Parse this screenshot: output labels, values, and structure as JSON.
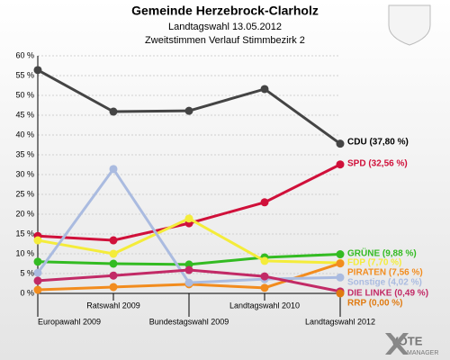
{
  "chart_data": {
    "type": "line",
    "title": "Gemeinde Herzebrock-Clarholz",
    "subtitle": "Landtagswahl 13.05.2012",
    "subtitle2": "Zweitstimmen Verlauf Stimmbezirk 2",
    "categories": [
      "Europawahl 2009",
      "Ratswahl 2009",
      "Bundestagswahl 2009",
      "Landtagswahl 2010",
      "Landtagswahl 2012"
    ],
    "series": [
      {
        "name": "CDU (37,80 %)",
        "color": "#444444",
        "values": [
          56.4,
          45.9,
          46.1,
          51.6,
          37.8
        ]
      },
      {
        "name": "SPD (32,56 %)",
        "color": "#d0103a",
        "values": [
          14.5,
          13.4,
          17.7,
          23.0,
          32.56
        ]
      },
      {
        "name": "GRÜNE (9,88 %)",
        "color": "#33bb22",
        "values": [
          8.0,
          7.5,
          7.3,
          9.1,
          9.88
        ]
      },
      {
        "name": "FDP (7,70 %)",
        "color": "#f4ec3a",
        "values": [
          13.4,
          10.0,
          18.9,
          8.2,
          7.7
        ]
      },
      {
        "name": "PIRATEN (7,56 %)",
        "color": "#f28c1e",
        "values": [
          0.9,
          1.6,
          2.3,
          1.4,
          7.56
        ]
      },
      {
        "name": "Sonstige (4,02 %)",
        "color": "#aabbe0",
        "values": [
          5.2,
          31.4,
          2.7,
          3.6,
          4.02
        ]
      },
      {
        "name": "DIE LINKE (0,49 %)",
        "color": "#c22a66",
        "values": [
          3.2,
          4.5,
          5.9,
          4.3,
          0.49
        ]
      },
      {
        "name": "RRP (0,00 %)",
        "color": "#e07a10",
        "values": [
          null,
          null,
          null,
          null,
          0.0
        ]
      }
    ],
    "ylim": [
      0,
      60
    ],
    "yticks": [
      {
        "value": 0,
        "label": "0 %"
      },
      {
        "value": 5,
        "label": "5 %"
      },
      {
        "value": 10,
        "label": "10 %"
      },
      {
        "value": 15,
        "label": "15 %"
      },
      {
        "value": 20,
        "label": "20 %"
      },
      {
        "value": 25,
        "label": "25 %"
      },
      {
        "value": 30,
        "label": "30 %"
      },
      {
        "value": 35,
        "label": "35 %"
      },
      {
        "value": 40,
        "label": "40 %"
      },
      {
        "value": 45,
        "label": "45 %"
      },
      {
        "value": 50,
        "label": "50 %"
      },
      {
        "value": 55,
        "label": "55 %"
      },
      {
        "value": 60,
        "label": "60 %"
      }
    ],
    "grid": true,
    "logo": [
      "VOTE",
      "MANAGER"
    ]
  }
}
